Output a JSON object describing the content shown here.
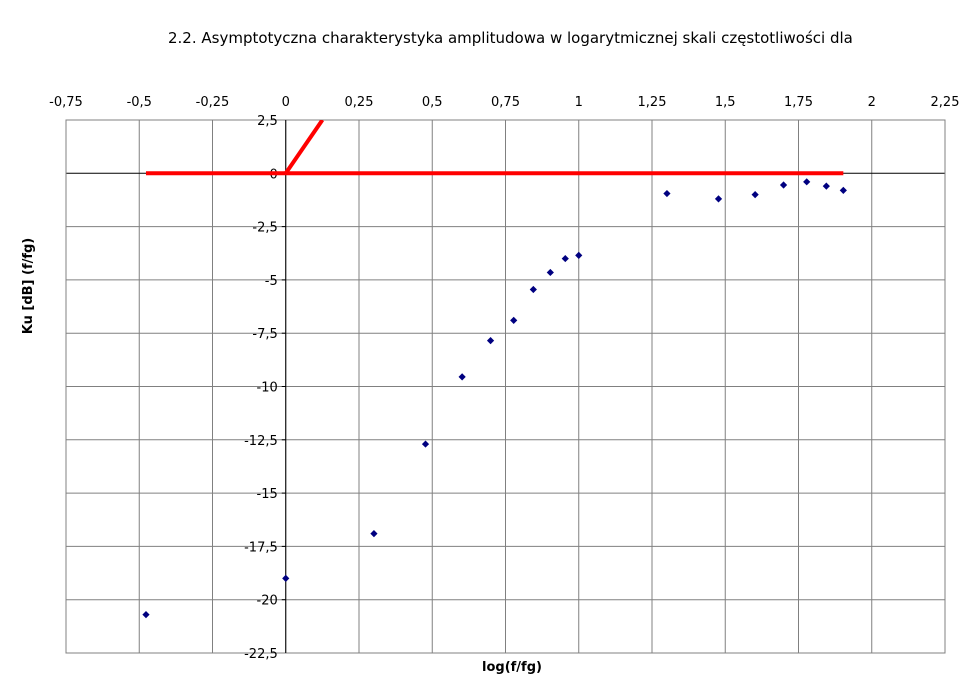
{
  "chart_data": {
    "type": "scatter",
    "title": "2.2. Asymptotyczna charakterystyka amplitudowa w logarytmicznej skali częstotliwości dla",
    "xlabel": "log(f/fg)",
    "ylabel": "Ku [dB] (f/fg)",
    "xlim": [
      -0.75,
      2.25
    ],
    "ylim": [
      -22.5,
      2.5
    ],
    "x_ticks": [
      "-0,75",
      "-0,5",
      "-0,25",
      "0",
      "0,25",
      "0,5",
      "0,75",
      "1",
      "1,25",
      "1,5",
      "1,75",
      "2",
      "2,25"
    ],
    "y_ticks": [
      "2,5",
      "0",
      "-2,5",
      "-5",
      "-7,5",
      "-10",
      "-12,5",
      "-15",
      "-17,5",
      "-20",
      "-22,5"
    ],
    "x_axis_position": "top",
    "grid": true,
    "series": [
      {
        "type": "scatter",
        "color": "#000080",
        "points": [
          [
            -0.477,
            -20.7
          ],
          [
            0.0,
            -19.0
          ],
          [
            0.301,
            -16.9
          ],
          [
            0.477,
            -12.7
          ],
          [
            0.602,
            -9.55
          ],
          [
            0.699,
            -7.85
          ],
          [
            0.778,
            -6.9
          ],
          [
            0.845,
            -5.45
          ],
          [
            0.903,
            -4.65
          ],
          [
            0.954,
            -4.0
          ],
          [
            1.0,
            -3.85
          ],
          [
            1.301,
            -0.95
          ],
          [
            1.477,
            -1.2
          ],
          [
            1.602,
            -1.0
          ],
          [
            1.699,
            -0.55
          ],
          [
            1.778,
            -0.4
          ],
          [
            1.845,
            -0.6
          ],
          [
            1.903,
            -0.8
          ]
        ]
      },
      {
        "type": "line",
        "color": "#ff0000",
        "points": [
          [
            -0.477,
            0
          ],
          [
            1.903,
            0
          ]
        ]
      },
      {
        "type": "line",
        "color": "#ff0000",
        "points": [
          [
            0,
            0
          ],
          [
            0.125,
            2.5
          ]
        ]
      }
    ]
  }
}
